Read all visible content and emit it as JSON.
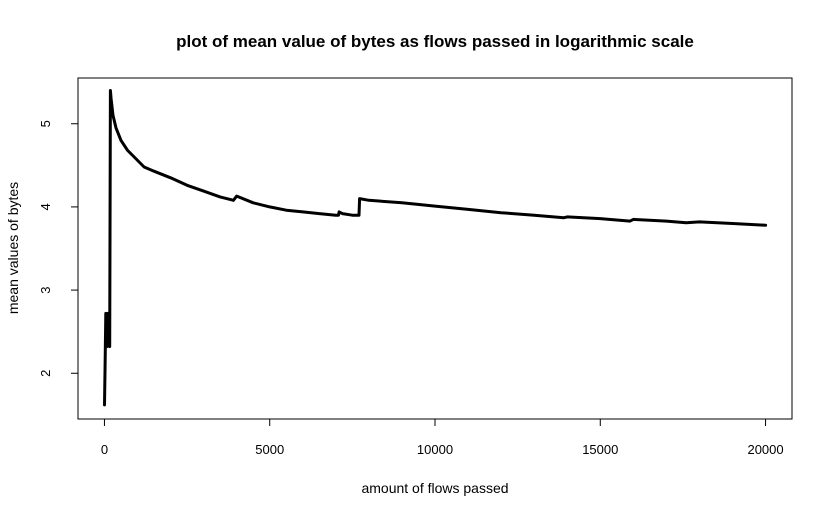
{
  "chart_data": {
    "type": "line",
    "title": "plot of mean value of bytes as flows passed in logarithmic scale",
    "xlabel": "amount of flows passed",
    "ylabel": "mean values of bytes",
    "xlim": [
      -800,
      20800
    ],
    "ylim": [
      1.45,
      5.55
    ],
    "x_ticks": [
      0,
      5000,
      10000,
      15000,
      20000
    ],
    "x_tick_labels": [
      "0",
      "5000",
      "10000",
      "15000",
      "20000"
    ],
    "y_ticks": [
      2,
      3,
      4,
      5
    ],
    "y_tick_labels": [
      "2",
      "3",
      "4",
      "5"
    ],
    "grid": false,
    "legend": "none",
    "line_color": "#000000",
    "series": [
      {
        "x": [
          1,
          20,
          40,
          60,
          80,
          100,
          120,
          140,
          160,
          180,
          200,
          260,
          350,
          500,
          700,
          900,
          1200,
          1500,
          2000,
          2500,
          3000,
          3500,
          3800,
          3900,
          4000,
          4500,
          5000,
          5500,
          6000,
          6500,
          7000,
          7080,
          7100,
          7200,
          7500,
          7700,
          7720,
          8000,
          9000,
          10000,
          11000,
          12000,
          13000,
          13900,
          14000,
          15000,
          15900,
          16000,
          17000,
          17600,
          18000,
          19000,
          20000
        ],
        "y": [
          1.62,
          2.1,
          2.72,
          2.4,
          2.32,
          2.72,
          2.5,
          2.35,
          2.32,
          5.4,
          5.3,
          5.1,
          4.95,
          4.8,
          4.68,
          4.6,
          4.48,
          4.43,
          4.35,
          4.26,
          4.19,
          4.12,
          4.09,
          4.08,
          4.13,
          4.05,
          4.0,
          3.96,
          3.94,
          3.92,
          3.9,
          3.9,
          3.94,
          3.92,
          3.9,
          3.9,
          4.1,
          4.08,
          4.05,
          4.01,
          3.97,
          3.93,
          3.9,
          3.87,
          3.88,
          3.86,
          3.83,
          3.85,
          3.83,
          3.81,
          3.82,
          3.8,
          3.78
        ]
      }
    ]
  }
}
